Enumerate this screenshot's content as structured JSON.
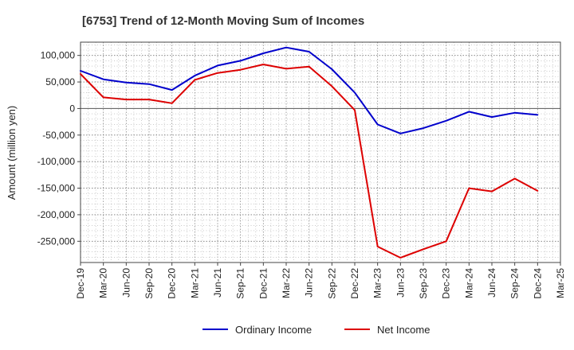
{
  "chart_data": {
    "type": "line",
    "title": "[6753]  Trend of 12-Month Moving Sum of Incomes",
    "ylabel": "Amount (million yen)",
    "xlabel": "",
    "ylim": [
      -290000,
      125000
    ],
    "yticks": [
      100000,
      50000,
      0,
      -50000,
      -100000,
      -150000,
      -200000,
      -250000
    ],
    "ytick_labels": [
      "100,000",
      "50,000",
      "0",
      "-50,000",
      "-100,000",
      "-150,000",
      "-200,000",
      "-250,000"
    ],
    "categories": [
      "Dec-19",
      "Mar-20",
      "Jun-20",
      "Sep-20",
      "Dec-20",
      "Mar-21",
      "Jun-21",
      "Sep-21",
      "Dec-21",
      "Mar-22",
      "Jun-22",
      "Sep-22",
      "Dec-22",
      "Mar-23",
      "Jun-23",
      "Sep-23",
      "Dec-23",
      "Mar-24",
      "Jun-24",
      "Sep-24",
      "Dec-24",
      "Mar-25"
    ],
    "grid": true,
    "legend_position": "bottom",
    "series": [
      {
        "name": "Ordinary Income",
        "color": "#0000cc",
        "values": [
          71000,
          55000,
          49000,
          46000,
          35000,
          62000,
          81000,
          90000,
          104000,
          115000,
          107000,
          74000,
          30000,
          -30000,
          -47000,
          -37000,
          -23000,
          -6000,
          -16000,
          -8000,
          -12000,
          null
        ]
      },
      {
        "name": "Net Income",
        "color": "#dd0000",
        "values": [
          65000,
          21000,
          17000,
          17000,
          10000,
          54000,
          67000,
          73000,
          83000,
          75000,
          79000,
          42000,
          -3000,
          -260000,
          -281000,
          -265000,
          -250000,
          -150000,
          -156000,
          -132000,
          -155000,
          null
        ]
      }
    ]
  }
}
